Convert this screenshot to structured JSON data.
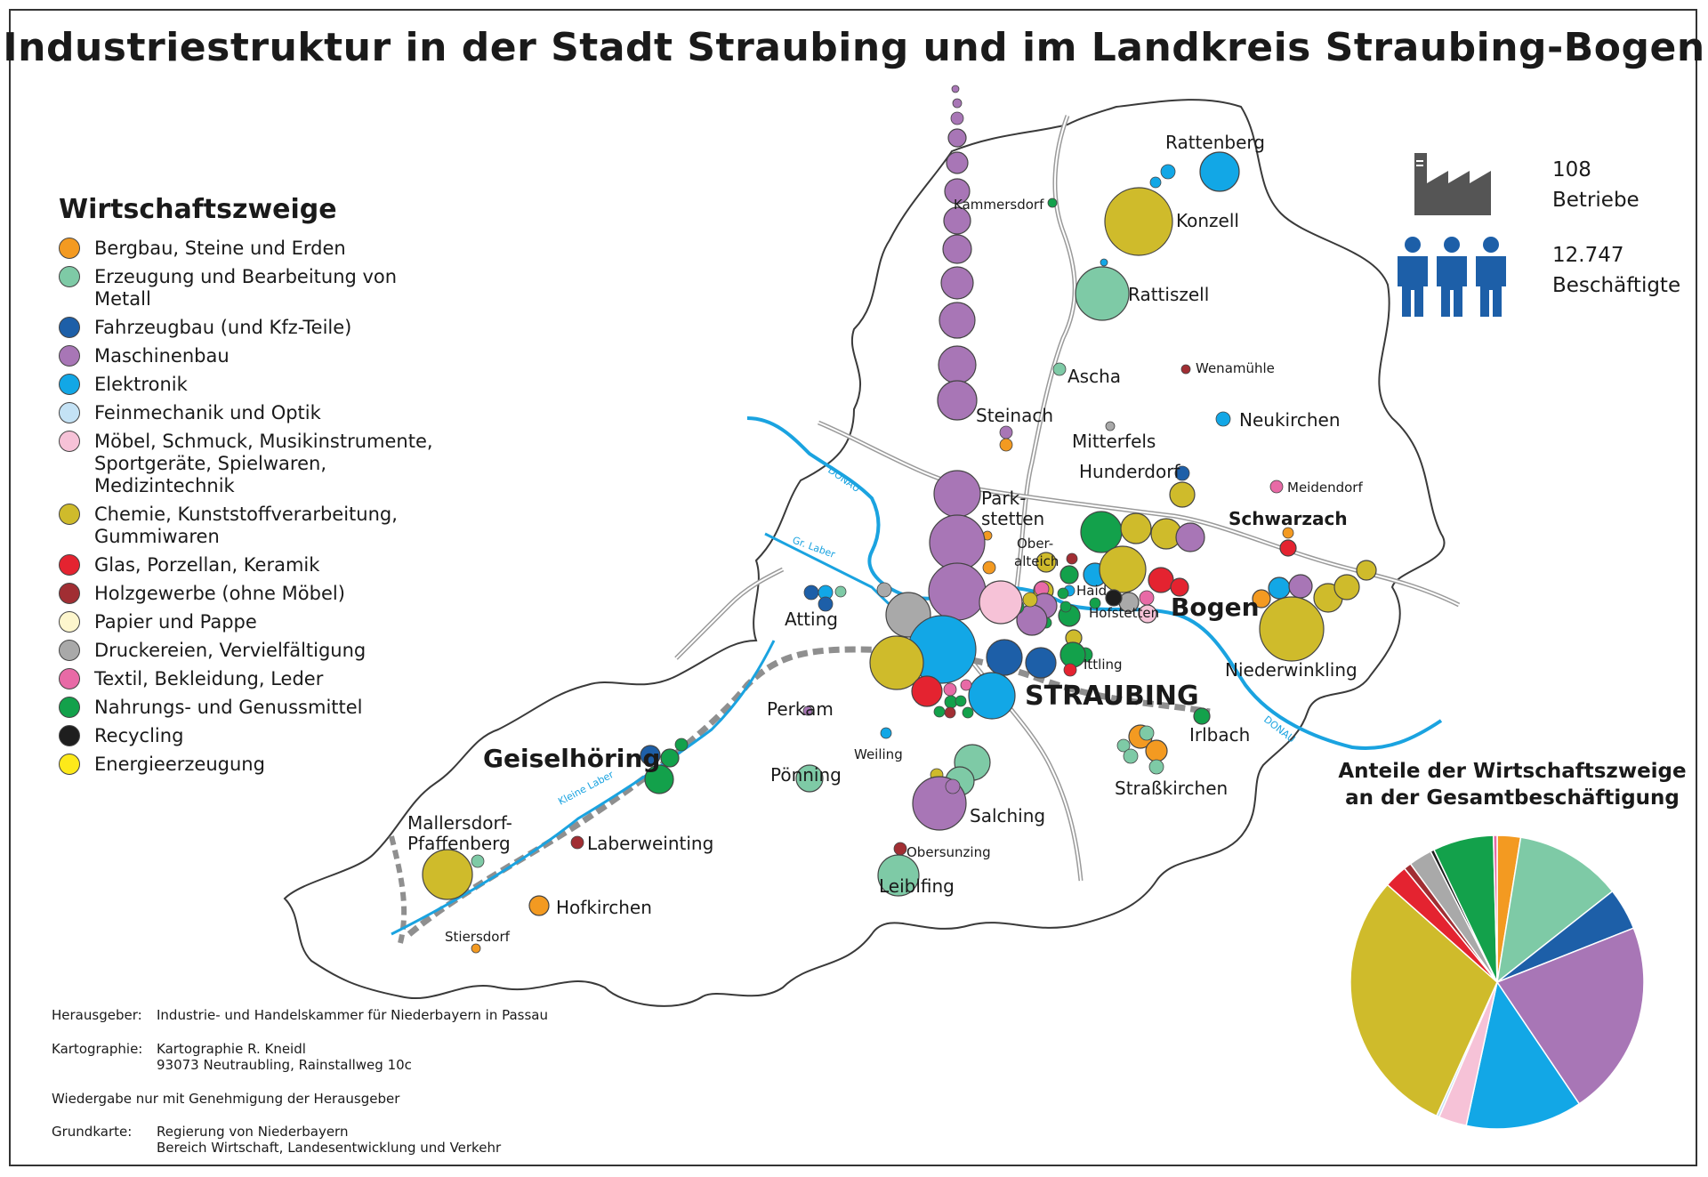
{
  "title": "Industriestruktur in der Stadt Straubing und im Landkreis Straubing-Bogen",
  "legend": {
    "heading": "Wirtschaftszweige",
    "items": [
      {
        "label": "Bergbau, Steine und Erden",
        "color": "#f39a21"
      },
      {
        "label": "Erzeugung und Bearbeitung von Metall",
        "color": "#7ecaa6"
      },
      {
        "label": "Fahrzeugbau (und Kfz-Teile)",
        "color": "#1d5fa8"
      },
      {
        "label": "Maschinenbau",
        "color": "#a876b6"
      },
      {
        "label": "Elektronik",
        "color": "#12a7e6"
      },
      {
        "label": "Feinmechanik und Optik",
        "color": "#c4e2f5"
      },
      {
        "label": "Möbel, Schmuck, Musikinstrumente, Sportgeräte, Spielwaren, Medizintechnik",
        "color": "#f6c2d7"
      },
      {
        "label": "Chemie, Kunststoffverarbeitung, Gummiwaren",
        "color": "#cfbb2b"
      },
      {
        "label": "Glas, Porzellan, Keramik",
        "color": "#e42330"
      },
      {
        "label": "Holzgewerbe (ohne Möbel)",
        "color": "#a12e33"
      },
      {
        "label": "Papier und Pappe",
        "color": "#fdf6cd"
      },
      {
        "label": "Druckereien, Vervielfältigung",
        "color": "#a9a9a9"
      },
      {
        "label": "Textil, Bekleidung, Leder",
        "color": "#e86aa6"
      },
      {
        "label": "Nahrungs- und Genussmittel",
        "color": "#13a14b"
      },
      {
        "label": "Recycling",
        "color": "#1e1e1e"
      },
      {
        "label": "Energieerzeugung",
        "color": "#fde91a"
      }
    ]
  },
  "stats": {
    "betriebe_value": "108",
    "betriebe_label": "Betriebe",
    "beschaeftigte_value": "12.747",
    "beschaeftigte_label": "Beschäftigte",
    "icon_color": "#1d5fa8"
  },
  "places": {
    "rattenberg": "Rattenberg",
    "kammersdorf": "Kammersdorf",
    "konzell": "Konzell",
    "rattiszell": "Rattiszell",
    "ascha": "Ascha",
    "wenamuehle": "Wenamühle",
    "steinach": "Steinach",
    "neukirchen": "Neukirchen",
    "mitterfels": "Mitterfels",
    "hunderdorf": "Hunderdorf",
    "meidendorf": "Meidendorf",
    "parkstetten_1": "Park-",
    "parkstetten_2": "stetten",
    "schwarzach": "Schwarzach",
    "oberalteich_1": "Ober-",
    "oberalteich_2": "alteich",
    "haid": "Haid",
    "hofstetten": "Hofstetten",
    "bogen": "Bogen",
    "atting": "Atting",
    "niederwinkling": "Niederwinkling",
    "ittling": "Ittling",
    "straubing": "STRAUBING",
    "perkam": "Perkam",
    "irlbach": "Irlbach",
    "geiselhoering": "Geiselhöring",
    "weiling": "Weiling",
    "poenning": "Pönning",
    "strasskirchen": "Straßkirchen",
    "salching": "Salching",
    "mallersdorf_1": "Mallersdorf-",
    "mallersdorf_2": "Pfaffenberg",
    "laberweinting": "Laberweinting",
    "obersunzing": "Obersunzing",
    "leiblfing": "Leiblfing",
    "hofkirchen": "Hofkirchen",
    "stiersdorf": "Stiersdorf"
  },
  "rivers": {
    "donau": "DONAU",
    "gr_laber": "Gr. Laber",
    "kleine_laber": "Kleine Laber"
  },
  "pie": {
    "title_line1": "Anteile der Wirtschaftszweige",
    "title_line2": "an der Gesamtbeschäftigung"
  },
  "chart_data": {
    "type": "pie",
    "title": "Anteile der Wirtschaftszweige an der Gesamtbeschäftigung",
    "slices": [
      {
        "label": "Bergbau, Steine und Erden",
        "value": 2.5,
        "color": "#f39a21"
      },
      {
        "label": "Erzeugung und Bearbeitung von Metall",
        "value": 11.5,
        "color": "#7ecaa6"
      },
      {
        "label": "Fahrzeugbau (und Kfz-Teile)",
        "value": 4.5,
        "color": "#1d5fa8"
      },
      {
        "label": "Maschinenbau",
        "value": 21,
        "color": "#a876b6"
      },
      {
        "label": "Elektronik",
        "value": 12.5,
        "color": "#12a7e6"
      },
      {
        "label": "Möbel, Schmuck, Musikinstrumente, Sportgeräte, Spielwaren, Medizintechnik",
        "value": 3,
        "color": "#f6c2d7"
      },
      {
        "label": "Feinmechanik und Optik",
        "value": 0.3,
        "color": "#c4e2f5"
      },
      {
        "label": "Chemie, Kunststoffverarbeitung, Gummiwaren",
        "value": 29,
        "color": "#cfbb2b"
      },
      {
        "label": "Glas, Porzellan, Keramik",
        "value": 2.5,
        "color": "#e42330"
      },
      {
        "label": "Holzgewerbe (ohne Möbel)",
        "value": 0.8,
        "color": "#a12e33"
      },
      {
        "label": "Druckereien, Vervielfältigung",
        "value": 2.5,
        "color": "#a9a9a9"
      },
      {
        "label": "Recycling",
        "value": 0.4,
        "color": "#1e1e1e"
      },
      {
        "label": "Nahrungs- und Genussmittel",
        "value": 6.5,
        "color": "#13a14b"
      },
      {
        "label": "Textil, Bekleidung, Leder",
        "value": 0.4,
        "color": "#e86aa6"
      }
    ]
  },
  "credits": {
    "herausgeber_label": "Herausgeber:",
    "herausgeber_value": "Industrie- und Handelskammer für Niederbayern in Passau",
    "kartographie_label": "Kartographie:",
    "kartographie_line1": "Kartographie R. Kneidl",
    "kartographie_line2": "93073 Neutraubling, Rainstallweg 10c",
    "wiedergabe": "Wiedergabe nur mit Genehmigung der Herausgeber",
    "grundkarte_label": "Grundkarte:",
    "grundkarte_line1": "Regierung von Niederbayern",
    "grundkarte_line2": "Bereich Wirtschaft, Landesentwicklung und Verkehr"
  }
}
